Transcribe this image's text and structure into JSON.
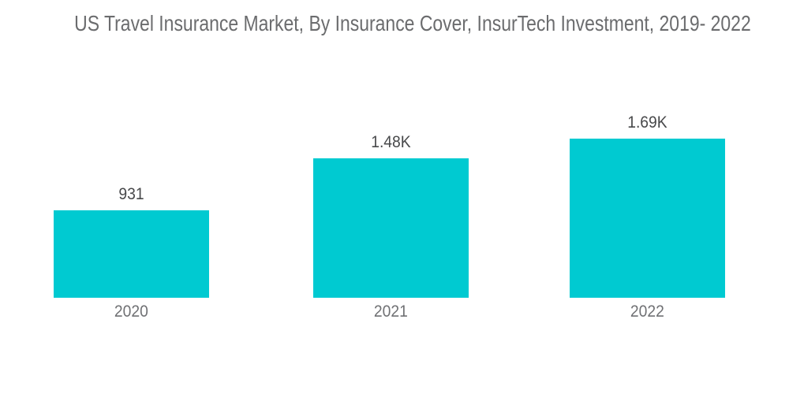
{
  "chart_data": {
    "type": "bar",
    "title": "US Travel Insurance Market, By Insurance Cover, InsurTech Investment, 2019- 2022",
    "categories": [
      "2020",
      "2021",
      "2022"
    ],
    "values": [
      931,
      1480,
      1690
    ],
    "value_labels": [
      "931",
      "1.48K",
      "1.69K"
    ],
    "xlabel": "",
    "ylabel": "",
    "ylim": [
      0,
      1800
    ],
    "grid": false,
    "legend": false,
    "axes_visible": false,
    "value_label_position": "above-bar",
    "bar_color": "#00cad1"
  },
  "colors": {
    "background": "#ffffff",
    "bar": "#00cad1",
    "title_text": "#6b6c6e",
    "value_label_text": "#48494b",
    "axis_label_text": "#707174"
  }
}
